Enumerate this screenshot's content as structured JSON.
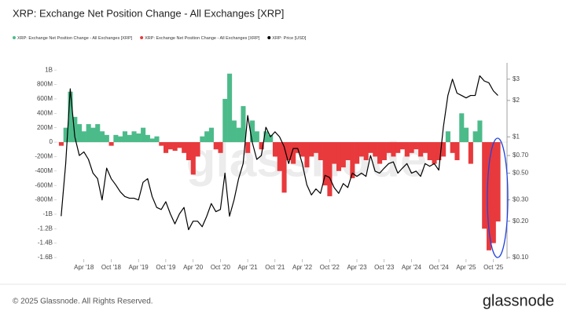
{
  "chart_data": {
    "type": "combo",
    "title": "XRP: Exchange Net Position Change - All Exchanges [XRP]",
    "watermark": "glassnode",
    "x": [
      "2017-11",
      "2017-12",
      "2018-01",
      "2018-02",
      "2018-03",
      "2018-04",
      "2018-05",
      "2018-06",
      "2018-07",
      "2018-08",
      "2018-09",
      "2018-10",
      "2018-11",
      "2018-12",
      "2019-01",
      "2019-02",
      "2019-03",
      "2019-04",
      "2019-05",
      "2019-06",
      "2019-07",
      "2019-08",
      "2019-09",
      "2019-10",
      "2019-11",
      "2019-12",
      "2020-01",
      "2020-02",
      "2020-03",
      "2020-04",
      "2020-05",
      "2020-06",
      "2020-07",
      "2020-08",
      "2020-09",
      "2020-10",
      "2020-11",
      "2020-12",
      "2021-01",
      "2021-02",
      "2021-03",
      "2021-04",
      "2021-05",
      "2021-06",
      "2021-07",
      "2021-08",
      "2021-09",
      "2021-10",
      "2021-11",
      "2021-12",
      "2022-01",
      "2022-02",
      "2022-03",
      "2022-04",
      "2022-05",
      "2022-06",
      "2022-07",
      "2022-08",
      "2022-09",
      "2022-10",
      "2022-11",
      "2022-12",
      "2023-01",
      "2023-02",
      "2023-03",
      "2023-04",
      "2023-05",
      "2023-06",
      "2023-07",
      "2023-08",
      "2023-09",
      "2023-10",
      "2023-11",
      "2023-12",
      "2024-01",
      "2024-02",
      "2024-03",
      "2024-04",
      "2024-05",
      "2024-06",
      "2024-07",
      "2024-08",
      "2024-09",
      "2024-10",
      "2024-11",
      "2024-12",
      "2025-01",
      "2025-02",
      "2025-03",
      "2025-04",
      "2025-05",
      "2025-06",
      "2025-07",
      "2025-08",
      "2025-09",
      "2025-10",
      "2025-11"
    ],
    "xlim": [
      "2017-10",
      "2026-01"
    ],
    "xticks": [
      {
        "value": "2018-04",
        "label": "Apr '18"
      },
      {
        "value": "2018-10",
        "label": "Oct '18"
      },
      {
        "value": "2019-04",
        "label": "Apr '19"
      },
      {
        "value": "2019-10",
        "label": "Oct '19"
      },
      {
        "value": "2020-04",
        "label": "Apr '20"
      },
      {
        "value": "2020-10",
        "label": "Oct '20"
      },
      {
        "value": "2021-04",
        "label": "Apr '21"
      },
      {
        "value": "2021-10",
        "label": "Oct '21"
      },
      {
        "value": "2022-04",
        "label": "Apr '22"
      },
      {
        "value": "2022-10",
        "label": "Oct '22"
      },
      {
        "value": "2023-04",
        "label": "Apr '23"
      },
      {
        "value": "2023-10",
        "label": "Oct '23"
      },
      {
        "value": "2024-04",
        "label": "Apr '24"
      },
      {
        "value": "2024-10",
        "label": "Oct '24"
      },
      {
        "value": "2025-04",
        "label": "Apr '25"
      },
      {
        "value": "2025-10",
        "label": "Oct '25"
      }
    ],
    "ylim": [
      -1600000000.0,
      1100000000.0
    ],
    "yticks": [
      {
        "value": 1000000000.0,
        "label": "1B"
      },
      {
        "value": 800000000.0,
        "label": "800M"
      },
      {
        "value": 600000000.0,
        "label": "600M"
      },
      {
        "value": 400000000.0,
        "label": "400M"
      },
      {
        "value": 200000000.0,
        "label": "200M"
      },
      0,
      {
        "value": -200000000.0,
        "label": "-200M"
      },
      {
        "value": -400000000.0,
        "label": "-400M"
      },
      {
        "value": -600000000.0,
        "label": "-600M"
      },
      {
        "value": -800000000.0,
        "label": "-800M"
      },
      {
        "value": -1000000000.0,
        "label": "-1B"
      },
      {
        "value": -1200000000.0,
        "label": "-1.2B"
      },
      {
        "value": -1400000000.0,
        "label": "-1.4B"
      },
      {
        "value": -1600000000.0,
        "label": "-1.6B"
      }
    ],
    "y2lim": [
      0.1,
      4.1
    ],
    "y2scale": "log",
    "y2ticks": [
      {
        "value": 3,
        "label": "$3"
      },
      {
        "value": 2,
        "label": "$2"
      },
      {
        "value": 1,
        "label": "$1"
      },
      {
        "value": 0.7,
        "label": "$0.70"
      },
      {
        "value": 0.5,
        "label": "$0.50"
      },
      {
        "value": 0.3,
        "label": "$0.30"
      },
      {
        "value": 0.2,
        "label": "$0.20"
      },
      {
        "value": 0.1,
        "label": "$0.10"
      }
    ],
    "series": [
      {
        "name": "XRP: Exchange Net Position Change - All Exchanges [XRP]",
        "type": "bar",
        "color": "#4cbb8a",
        "values": [
          null,
          200000000.0,
          700000000.0,
          350000000.0,
          250000000.0,
          150000000.0,
          250000000.0,
          200000000.0,
          250000000.0,
          150000000.0,
          100000000.0,
          null,
          100000000.0,
          80000000.0,
          150000000.0,
          100000000.0,
          150000000.0,
          120000000.0,
          200000000.0,
          100000000.0,
          50000000.0,
          80000000.0,
          null,
          null,
          null,
          null,
          null,
          null,
          null,
          null,
          null,
          80000000.0,
          150000000.0,
          200000000.0,
          null,
          null,
          600000000.0,
          950000000.0,
          300000000.0,
          200000000.0,
          500000000.0,
          null,
          300000000.0,
          150000000.0,
          null,
          150000000.0,
          100000000.0,
          null,
          null,
          null,
          null,
          null,
          null,
          null,
          null,
          null,
          null,
          null,
          null,
          null,
          null,
          null,
          null,
          null,
          null,
          null,
          null,
          null,
          null,
          null,
          null,
          null,
          null,
          null,
          null,
          null,
          null,
          null,
          null,
          null,
          null,
          null,
          null,
          null,
          null,
          150000000.0,
          null,
          null,
          400000000.0,
          200000000.0,
          null,
          150000000.0,
          300000000.0,
          null,
          null,
          null,
          null
        ]
      },
      {
        "name": "XRP: Exchange Net Position Change - All Exchanges [XRP]",
        "type": "bar",
        "color": "#e8393c",
        "values": [
          -50000000.0,
          null,
          null,
          null,
          null,
          null,
          null,
          null,
          null,
          null,
          null,
          -50000000.0,
          null,
          null,
          null,
          null,
          null,
          null,
          null,
          null,
          null,
          null,
          -50000000.0,
          -150000000.0,
          -100000000.0,
          -120000000.0,
          -80000000.0,
          -150000000.0,
          -250000000.0,
          -450000000.0,
          -200000000.0,
          null,
          null,
          null,
          -100000000.0,
          -150000000.0,
          null,
          null,
          null,
          null,
          null,
          -150000000.0,
          null,
          null,
          -100000000.0,
          null,
          null,
          -200000000.0,
          -400000000.0,
          -700000000.0,
          -250000000.0,
          -300000000.0,
          -150000000.0,
          -200000000.0,
          -350000000.0,
          -200000000.0,
          -150000000.0,
          -250000000.0,
          -600000000.0,
          -750000000.0,
          -300000000.0,
          -400000000.0,
          -350000000.0,
          -250000000.0,
          -500000000.0,
          -300000000.0,
          -200000000.0,
          -250000000.0,
          -150000000.0,
          -200000000.0,
          -300000000.0,
          -250000000.0,
          -150000000.0,
          -200000000.0,
          -150000000.0,
          -100000000.0,
          -200000000.0,
          -150000000.0,
          -100000000.0,
          -200000000.0,
          -150000000.0,
          -250000000.0,
          -300000000.0,
          -250000000.0,
          -200000000.0,
          null,
          -150000000.0,
          -250000000.0,
          null,
          null,
          -300000000.0,
          null,
          null,
          -1200000000.0,
          -1500000000.0,
          -1400000000.0,
          -1100000000.0
        ]
      },
      {
        "name": "XRP: Price [USD]",
        "type": "line",
        "axis": "y2",
        "color": "#000000",
        "values": [
          0.22,
          0.6,
          2.5,
          1.0,
          0.7,
          0.75,
          0.65,
          0.5,
          0.45,
          0.3,
          0.55,
          0.45,
          0.4,
          0.35,
          0.32,
          0.31,
          0.31,
          0.3,
          0.42,
          0.45,
          0.32,
          0.26,
          0.25,
          0.29,
          0.23,
          0.19,
          0.23,
          0.26,
          0.17,
          0.2,
          0.2,
          0.18,
          0.22,
          0.28,
          0.24,
          0.25,
          0.5,
          0.22,
          0.3,
          0.45,
          0.6,
          1.5,
          0.9,
          0.65,
          0.7,
          1.2,
          1.0,
          1.1,
          1.0,
          0.83,
          0.6,
          0.8,
          0.8,
          0.6,
          0.4,
          0.33,
          0.37,
          0.34,
          0.48,
          0.46,
          0.38,
          0.34,
          0.41,
          0.38,
          0.5,
          0.47,
          0.5,
          0.47,
          0.7,
          0.52,
          0.5,
          0.55,
          0.6,
          0.62,
          0.5,
          0.55,
          0.6,
          0.5,
          0.52,
          0.47,
          0.6,
          0.57,
          0.6,
          0.53,
          1.2,
          2.2,
          3.0,
          2.3,
          2.2,
          2.1,
          2.2,
          2.2,
          3.2,
          2.9,
          2.8,
          2.4,
          2.2
        ]
      }
    ]
  },
  "footer": {
    "copyright": "© 2025 Glassnode. All Rights Reserved.",
    "logo": "glassnode"
  }
}
